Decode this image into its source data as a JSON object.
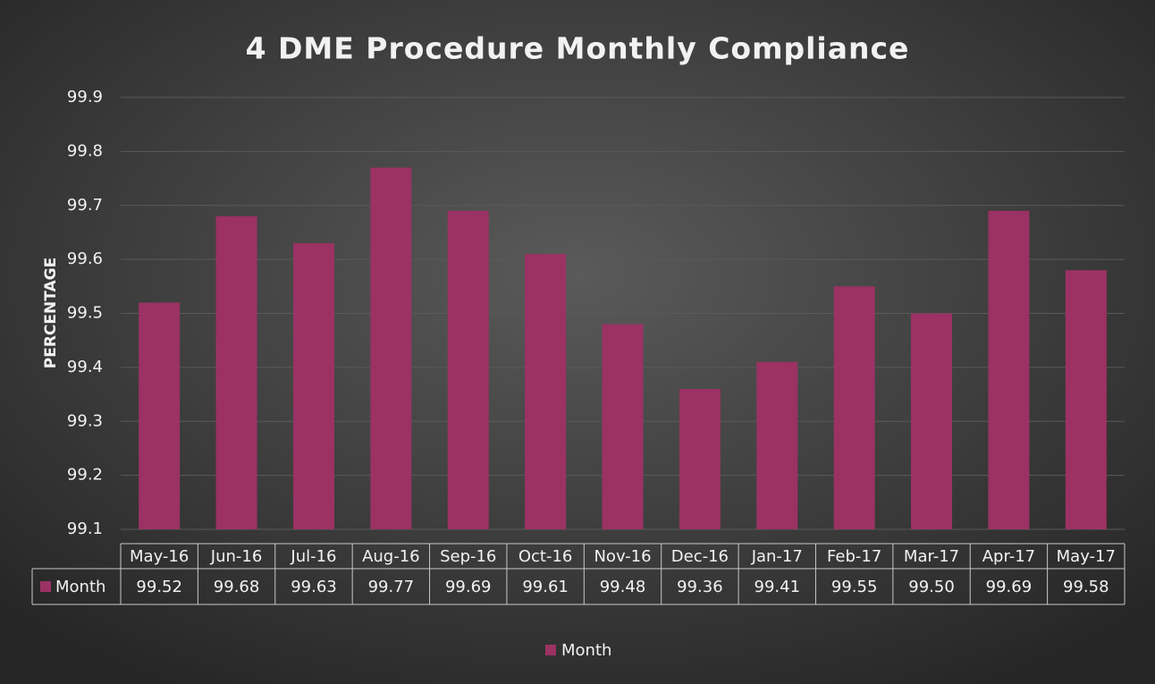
{
  "chart_data": {
    "type": "bar",
    "title": "4 DME Procedure Monthly Compliance",
    "y_label": "PERCENTAGE",
    "categories": [
      "May-16",
      "Jun-16",
      "Jul-16",
      "Aug-16",
      "Sep-16",
      "Oct-16",
      "Nov-16",
      "Dec-16",
      "Jan-17",
      "Feb-17",
      "Mar-17",
      "Apr-17",
      "May-17"
    ],
    "series": [
      {
        "name": "Month",
        "color": "#9b3263",
        "values": [
          99.52,
          99.68,
          99.63,
          99.77,
          99.69,
          99.61,
          99.48,
          99.36,
          99.41,
          99.55,
          99.5,
          99.69,
          99.58
        ],
        "value_labels": [
          "99.52",
          "99.68",
          "99.63",
          "99.77",
          "99.69",
          "99.61",
          "99.48",
          "99.36",
          "99.41",
          "99.55",
          "99.50",
          "99.69",
          "99.58"
        ]
      }
    ],
    "ylim": [
      99.1,
      99.9
    ],
    "yticks": [
      99.1,
      99.2,
      99.3,
      99.4,
      99.5,
      99.6,
      99.7,
      99.8,
      99.9
    ],
    "grid": true,
    "legend": "bottom",
    "data_table": true
  }
}
